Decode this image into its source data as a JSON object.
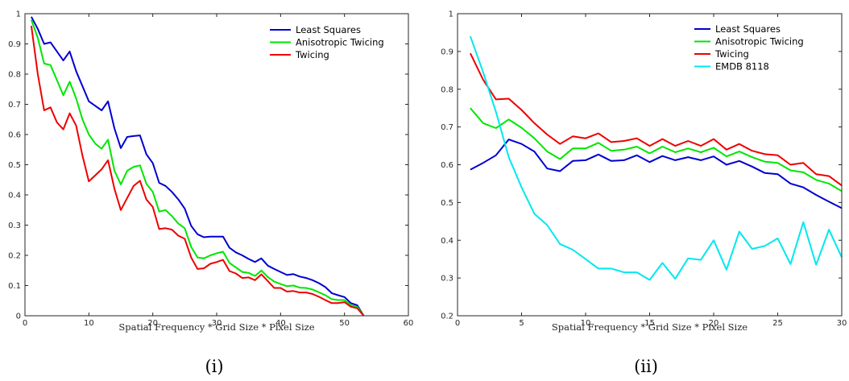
{
  "chart_data": [
    {
      "type": "line",
      "caption": "(i)",
      "xlabel": "Spatial Frequency * Grid Size * Pixel Size",
      "ylabel": "",
      "xlim": [
        0,
        60
      ],
      "ylim": [
        0,
        1
      ],
      "xticks": [
        0,
        10,
        20,
        30,
        40,
        50,
        60
      ],
      "yticks": [
        0,
        0.1,
        0.2,
        0.3,
        0.4,
        0.5,
        0.6,
        0.7,
        0.8,
        0.9,
        1
      ],
      "grid": false,
      "legend_position": "top-right",
      "series": [
        {
          "name": "Least Squares",
          "color": "#0000d0",
          "x": [
            1,
            2,
            3,
            4,
            5,
            6,
            7,
            8,
            9,
            10,
            11,
            12,
            13,
            14,
            15,
            16,
            17,
            18,
            19,
            20,
            21,
            22,
            23,
            24,
            25,
            26,
            27,
            28,
            29,
            30,
            31,
            32,
            33,
            34,
            35,
            36,
            37,
            38,
            39,
            40,
            41,
            42,
            43,
            44,
            45,
            46,
            47,
            48,
            49,
            50,
            51,
            52,
            53
          ],
          "y": [
            0.99,
            0.95,
            0.9,
            0.905,
            0.875,
            0.845,
            0.875,
            0.81,
            0.76,
            0.71,
            0.695,
            0.68,
            0.71,
            0.62,
            0.555,
            0.592,
            0.595,
            0.597,
            0.535,
            0.505,
            0.44,
            0.43,
            0.41,
            0.385,
            0.355,
            0.298,
            0.27,
            0.26,
            0.262,
            0.262,
            0.262,
            0.225,
            0.21,
            0.2,
            0.188,
            0.178,
            0.19,
            0.166,
            0.155,
            0.145,
            0.135,
            0.138,
            0.13,
            0.125,
            0.118,
            0.108,
            0.095,
            0.075,
            0.068,
            0.062,
            0.042,
            0.035,
            0.0
          ]
        },
        {
          "name": "Anisotropic Twicing",
          "color": "#00e600",
          "x": [
            1,
            2,
            3,
            4,
            5,
            6,
            7,
            8,
            9,
            10,
            11,
            12,
            13,
            14,
            15,
            16,
            17,
            18,
            19,
            20,
            21,
            22,
            23,
            24,
            25,
            26,
            27,
            28,
            29,
            30,
            31,
            32,
            33,
            34,
            35,
            36,
            37,
            38,
            39,
            40,
            41,
            42,
            43,
            44,
            45,
            46,
            47,
            48,
            49,
            50,
            51,
            52,
            53
          ],
          "y": [
            0.98,
            0.92,
            0.835,
            0.83,
            0.78,
            0.73,
            0.775,
            0.72,
            0.65,
            0.6,
            0.57,
            0.553,
            0.583,
            0.48,
            0.435,
            0.48,
            0.493,
            0.498,
            0.437,
            0.41,
            0.345,
            0.35,
            0.33,
            0.305,
            0.29,
            0.228,
            0.193,
            0.19,
            0.2,
            0.207,
            0.212,
            0.175,
            0.16,
            0.145,
            0.142,
            0.132,
            0.15,
            0.128,
            0.113,
            0.105,
            0.098,
            0.1,
            0.093,
            0.092,
            0.087,
            0.078,
            0.068,
            0.055,
            0.052,
            0.052,
            0.035,
            0.03,
            0.0
          ]
        },
        {
          "name": "Twicing",
          "color": "#ee0000",
          "x": [
            1,
            2,
            3,
            4,
            5,
            6,
            7,
            8,
            9,
            10,
            11,
            12,
            13,
            14,
            15,
            16,
            17,
            18,
            19,
            20,
            21,
            22,
            23,
            24,
            25,
            26,
            27,
            28,
            29,
            30,
            31,
            32,
            33,
            34,
            35,
            36,
            37,
            38,
            39,
            40,
            41,
            42,
            43,
            44,
            45,
            46,
            47,
            48,
            49,
            50,
            51,
            52,
            53
          ],
          "y": [
            0.96,
            0.8,
            0.68,
            0.69,
            0.64,
            0.617,
            0.67,
            0.63,
            0.53,
            0.445,
            0.465,
            0.485,
            0.515,
            0.42,
            0.35,
            0.39,
            0.43,
            0.447,
            0.385,
            0.36,
            0.287,
            0.29,
            0.285,
            0.265,
            0.255,
            0.193,
            0.155,
            0.157,
            0.172,
            0.178,
            0.185,
            0.148,
            0.14,
            0.125,
            0.127,
            0.118,
            0.137,
            0.115,
            0.092,
            0.092,
            0.08,
            0.082,
            0.077,
            0.077,
            0.072,
            0.063,
            0.052,
            0.042,
            0.042,
            0.045,
            0.03,
            0.025,
            0.0
          ]
        }
      ]
    },
    {
      "type": "line",
      "caption": "(ii)",
      "xlabel": "Spatial Frequency * Grid Size * Pixel Size",
      "ylabel": "",
      "xlim": [
        0,
        30
      ],
      "ylim": [
        0.2,
        1
      ],
      "xticks": [
        0,
        5,
        10,
        15,
        20,
        25,
        30
      ],
      "yticks": [
        0.2,
        0.3,
        0.4,
        0.5,
        0.6,
        0.7,
        0.8,
        0.9,
        1
      ],
      "grid": false,
      "legend_position": "top-right",
      "series": [
        {
          "name": "Least Squares",
          "color": "#0000d0",
          "x": [
            1,
            2,
            3,
            4,
            5,
            6,
            7,
            8,
            9,
            10,
            11,
            12,
            13,
            14,
            15,
            16,
            17,
            18,
            19,
            20,
            21,
            22,
            23,
            24,
            25,
            26,
            27,
            28,
            29,
            30
          ],
          "y": [
            0.587,
            0.605,
            0.625,
            0.667,
            0.655,
            0.635,
            0.59,
            0.583,
            0.61,
            0.612,
            0.627,
            0.61,
            0.612,
            0.625,
            0.607,
            0.623,
            0.612,
            0.62,
            0.612,
            0.622,
            0.6,
            0.61,
            0.595,
            0.578,
            0.575,
            0.55,
            0.54,
            0.52,
            0.502,
            0.485
          ]
        },
        {
          "name": "Anisotropic Twicing",
          "color": "#00e600",
          "x": [
            1,
            2,
            3,
            4,
            5,
            6,
            7,
            8,
            9,
            10,
            11,
            12,
            13,
            14,
            15,
            16,
            17,
            18,
            19,
            20,
            21,
            22,
            23,
            24,
            25,
            26,
            27,
            28,
            29,
            30
          ],
          "y": [
            0.75,
            0.71,
            0.697,
            0.72,
            0.698,
            0.67,
            0.635,
            0.615,
            0.643,
            0.643,
            0.658,
            0.637,
            0.64,
            0.648,
            0.63,
            0.648,
            0.633,
            0.643,
            0.633,
            0.645,
            0.622,
            0.635,
            0.62,
            0.608,
            0.605,
            0.585,
            0.58,
            0.56,
            0.55,
            0.53
          ]
        },
        {
          "name": "Twicing",
          "color": "#ee0000",
          "x": [
            1,
            2,
            3,
            4,
            5,
            6,
            7,
            8,
            9,
            10,
            11,
            12,
            13,
            14,
            15,
            16,
            17,
            18,
            19,
            20,
            21,
            22,
            23,
            24,
            25,
            26,
            27,
            28,
            29,
            30
          ],
          "y": [
            0.895,
            0.825,
            0.773,
            0.775,
            0.745,
            0.71,
            0.68,
            0.655,
            0.675,
            0.67,
            0.683,
            0.66,
            0.663,
            0.67,
            0.65,
            0.668,
            0.65,
            0.663,
            0.65,
            0.668,
            0.64,
            0.655,
            0.637,
            0.628,
            0.625,
            0.6,
            0.605,
            0.575,
            0.57,
            0.545
          ]
        },
        {
          "name": "EMDB 8118",
          "color": "#00e8ee",
          "x": [
            1,
            2,
            3,
            4,
            5,
            6,
            7,
            8,
            9,
            10,
            11,
            12,
            13,
            14,
            15,
            16,
            17,
            18,
            19,
            20,
            21,
            22,
            23,
            24,
            25,
            26,
            27,
            28,
            29,
            30
          ],
          "y": [
            0.94,
            0.845,
            0.74,
            0.62,
            0.54,
            0.47,
            0.44,
            0.39,
            0.375,
            0.35,
            0.325,
            0.325,
            0.315,
            0.315,
            0.295,
            0.34,
            0.298,
            0.352,
            0.348,
            0.4,
            0.322,
            0.423,
            0.377,
            0.385,
            0.405,
            0.337,
            0.448,
            0.335,
            0.428,
            0.355
          ]
        }
      ]
    }
  ]
}
